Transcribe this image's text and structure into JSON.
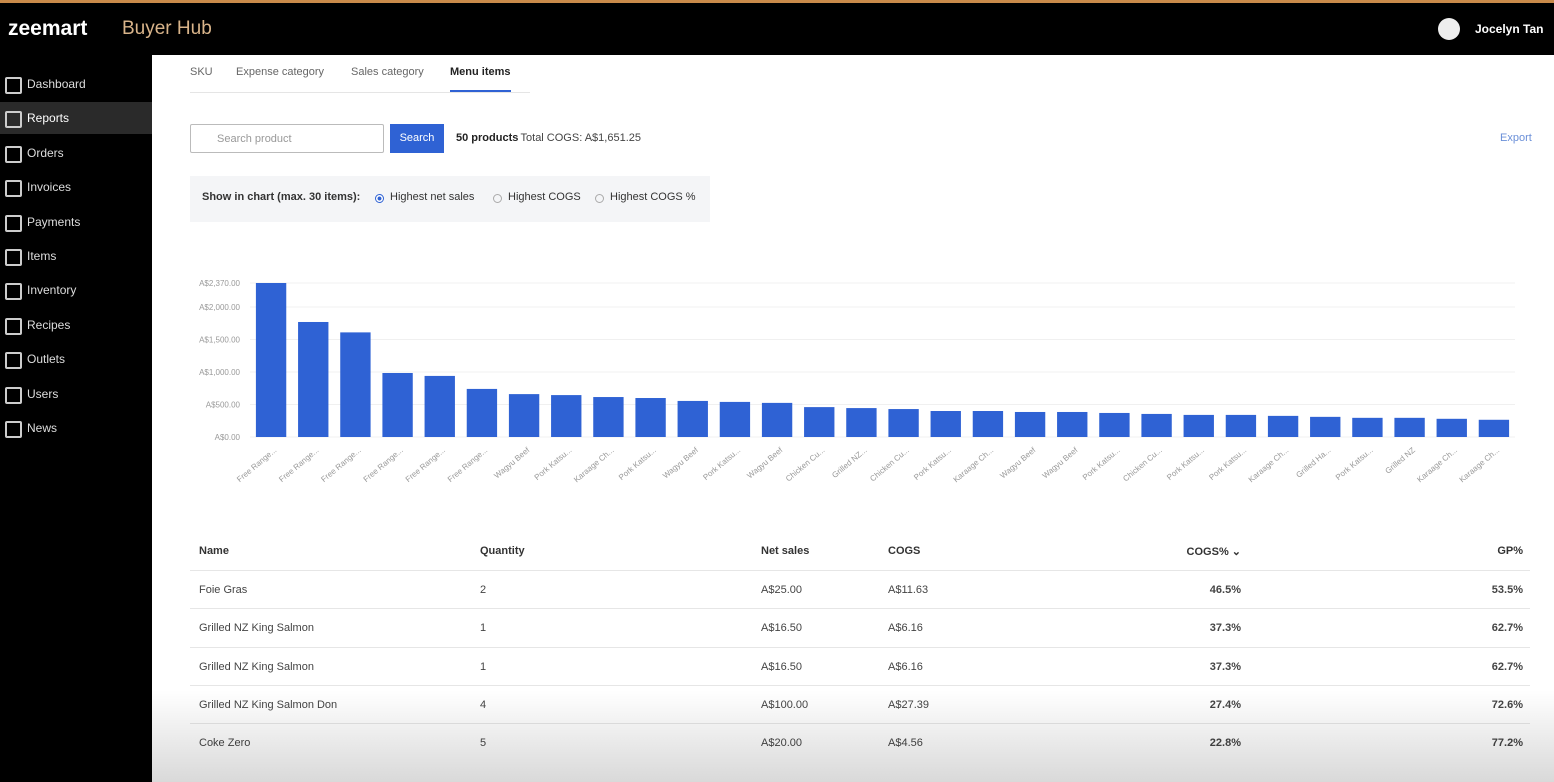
{
  "header": {
    "logo": "zeemart",
    "app": "Buyer Hub",
    "user": "Jocelyn Tan"
  },
  "sidebar": [
    "Dashboard",
    "Reports",
    "Orders",
    "Invoices",
    "Payments",
    "Items",
    "Inventory",
    "Recipes",
    "Outlets",
    "Users",
    "News"
  ],
  "tabs": [
    "SKU",
    "Expense category",
    "Sales category",
    "Menu items"
  ],
  "toolbar": {
    "search_placeholder": "Search product",
    "search_button": "Search",
    "count": "50 products",
    "total": "- Total COGS: A$1,651.25",
    "export": "Export"
  },
  "chart_options": {
    "label": "Show in chart (max. 30 items):",
    "options": [
      "Highest net sales",
      "Highest COGS",
      "Highest COGS %"
    ]
  },
  "chart_data": {
    "type": "bar",
    "color": "#2f62d4",
    "grid": true,
    "categories": [
      "Free Range...",
      "Free Range...",
      "Free Range...",
      "Free Range...",
      "Free Range...",
      "Free Range...",
      "Wagyu Beef",
      "Pork Katsu...",
      "Karaage Ch...",
      "Pork Katsu...",
      "Wagyu Beef",
      "Pork Katsu...",
      "Wagyu Beef",
      "Chicken Cu...",
      "Grilled NZ...",
      "Chicken Cu...",
      "Pork Katsu...",
      "Karaage Ch...",
      "Wagyu Beef",
      "Wagyu Beef",
      "Pork Katsu...",
      "Chicken Cu...",
      "Pork Katsu...",
      "Pork Katsu...",
      "Karaage Ch...",
      "Grilled Ha...",
      "Pork Katsu...",
      "Grilled NZ",
      "Karaage Ch...",
      "Karaage Ch..."
    ],
    "values": [
      2370,
      1770,
      1610,
      985,
      940,
      740,
      660,
      645,
      615,
      600,
      555,
      540,
      525,
      460,
      445,
      430,
      400,
      400,
      385,
      385,
      370,
      355,
      340,
      340,
      325,
      310,
      295,
      295,
      280,
      265
    ],
    "ylim": [
      0,
      2370
    ],
    "yticks": [
      {
        "value": 0,
        "label": "A$0.00"
      },
      {
        "value": 500,
        "label": "A$500.00"
      },
      {
        "value": 1000,
        "label": "A$1,000.00"
      },
      {
        "value": 1500,
        "label": "A$1,500.00"
      },
      {
        "value": 2000,
        "label": "A$2,000.00"
      },
      {
        "value": 2370,
        "label": "A$2,370.00"
      }
    ]
  },
  "table": {
    "columns": [
      "Name",
      "Quantity",
      "Net sales",
      "COGS",
      "COGS% ⌄",
      "GP%"
    ],
    "rows": [
      [
        "Foie Gras",
        "2",
        "A$25.00",
        "A$11.63",
        "46.5%",
        "53.5%"
      ],
      [
        "Grilled NZ King Salmon",
        "1",
        "A$16.50",
        "A$6.16",
        "37.3%",
        "62.7%"
      ],
      [
        "Grilled NZ King Salmon",
        "1",
        "A$16.50",
        "A$6.16",
        "37.3%",
        "62.7%"
      ],
      [
        "Grilled NZ King Salmon Don",
        "4",
        "A$100.00",
        "A$27.39",
        "27.4%",
        "72.6%"
      ],
      [
        "Coke Zero",
        "5",
        "A$20.00",
        "A$4.56",
        "22.8%",
        "77.2%"
      ]
    ]
  }
}
